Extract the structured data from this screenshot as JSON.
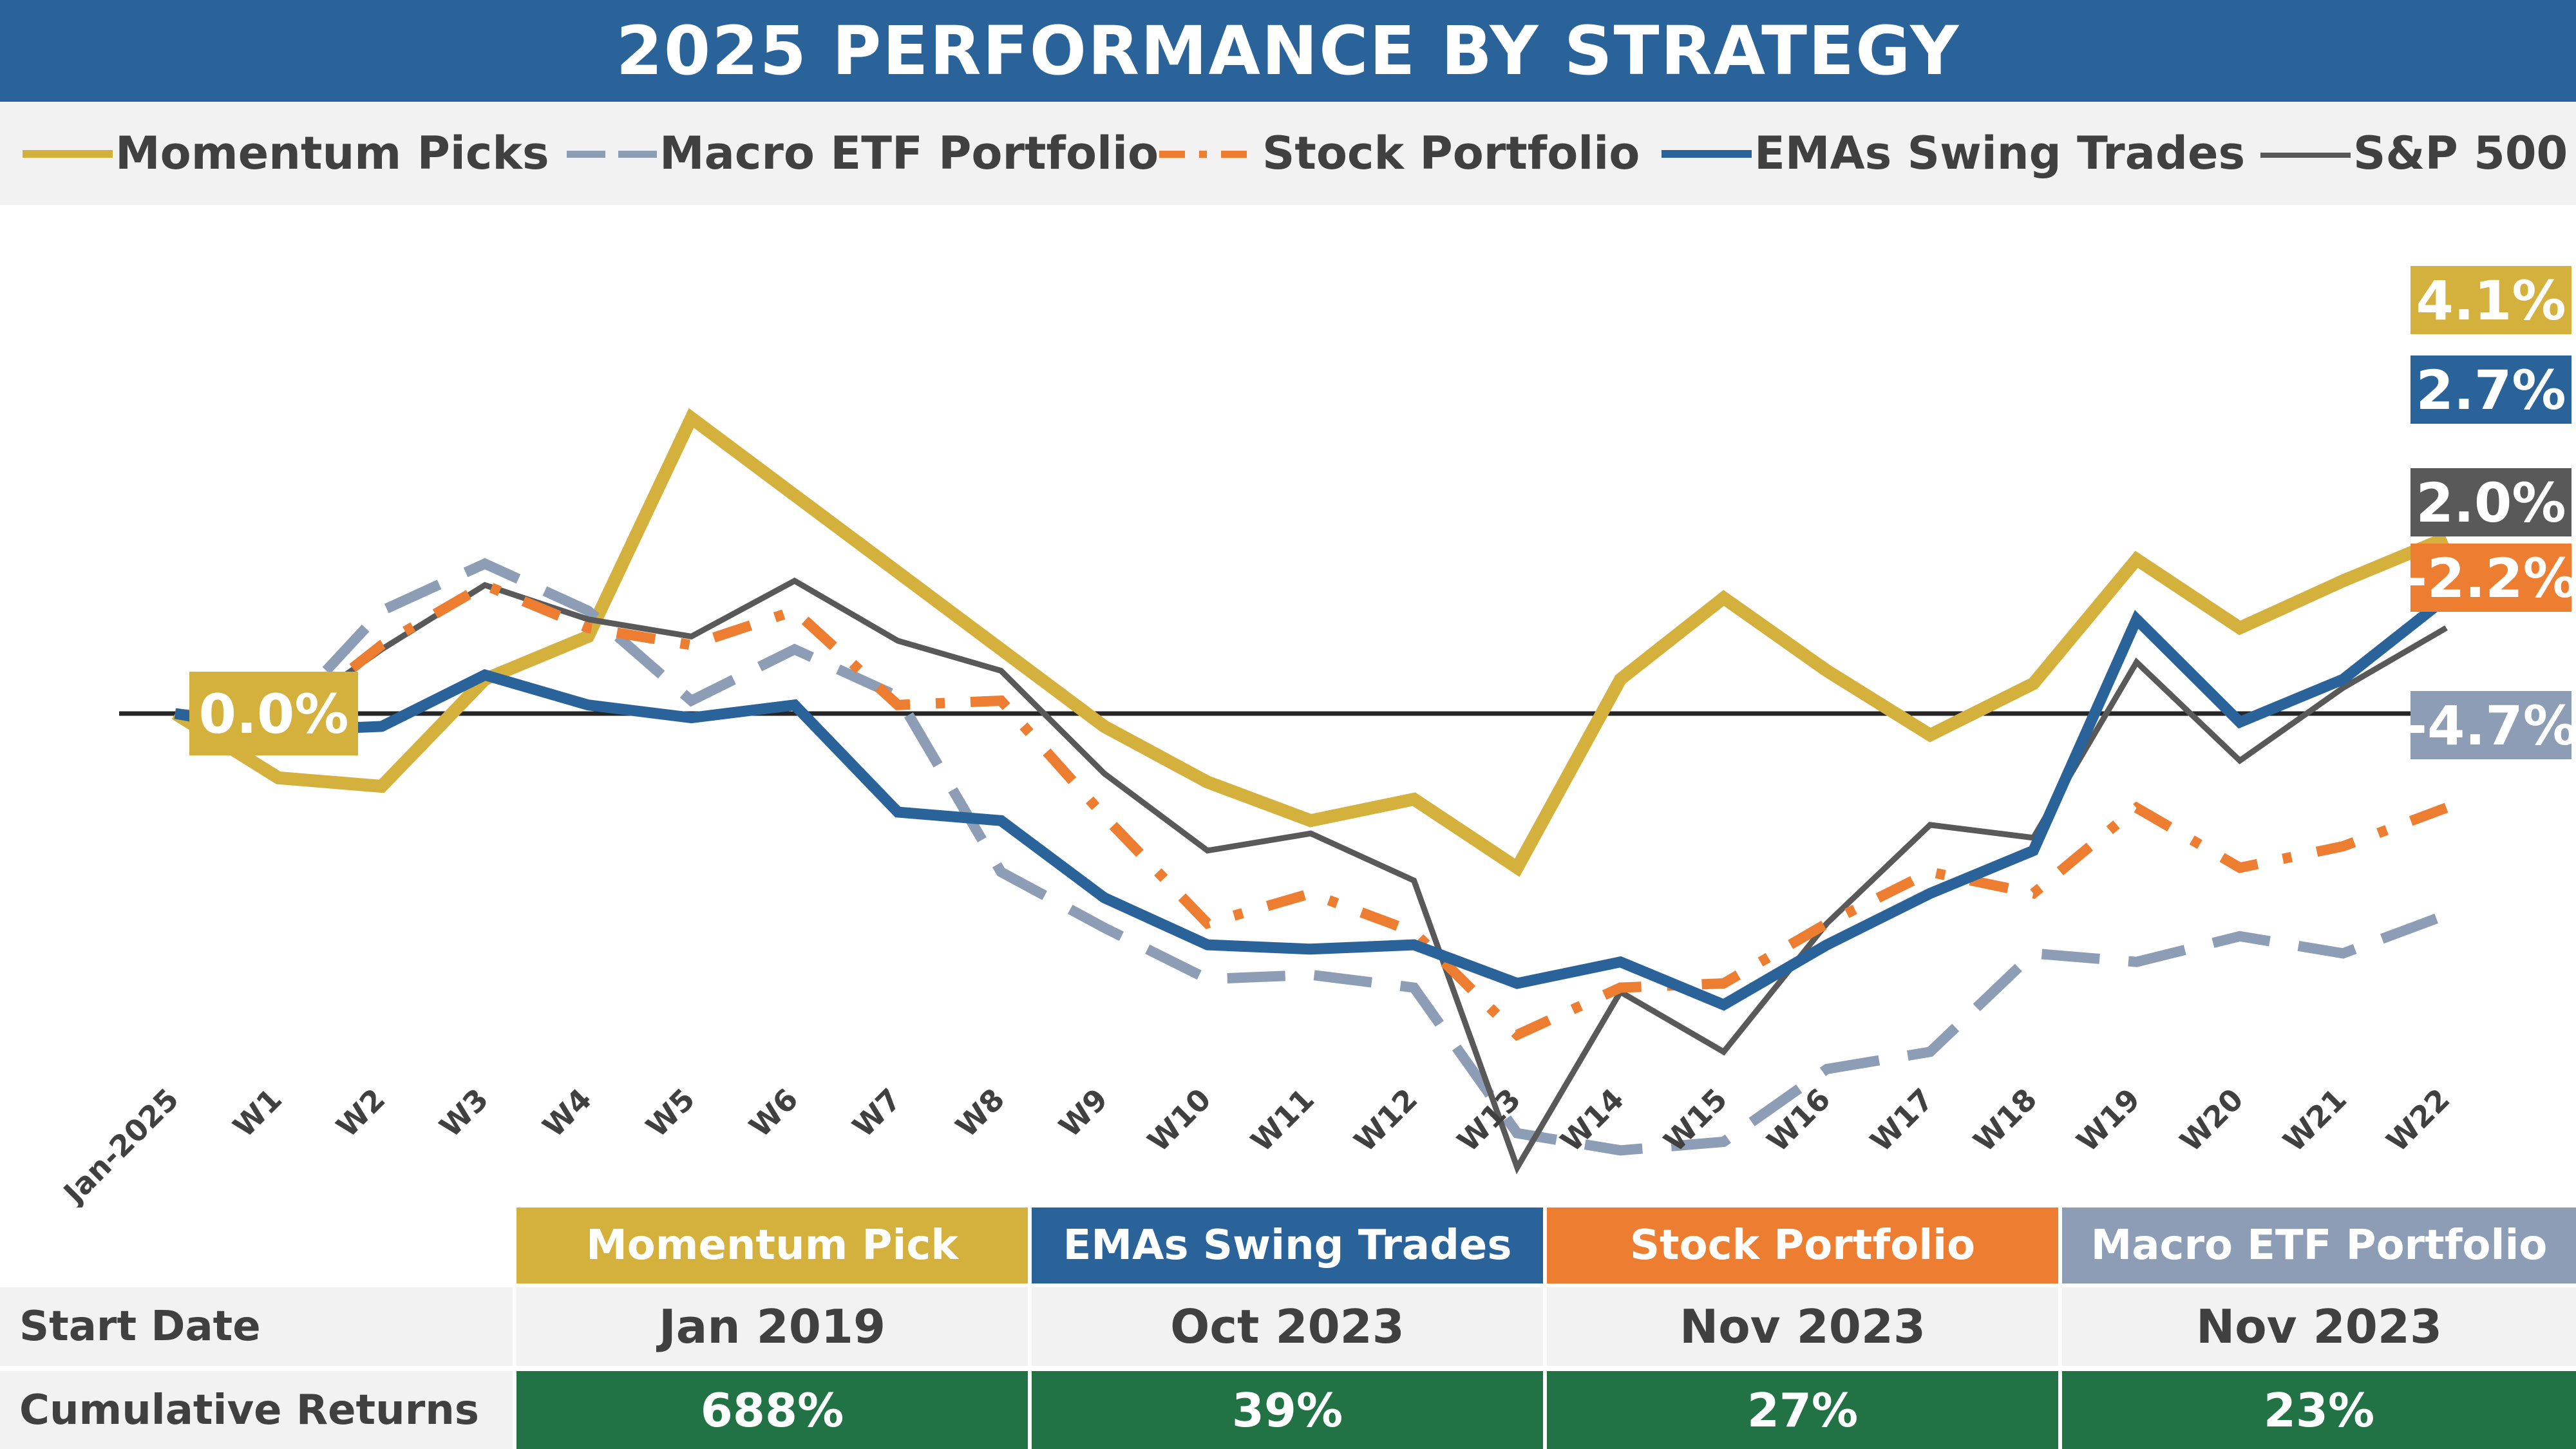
{
  "title": "2025 PERFORMANCE BY STRATEGY",
  "legend": [
    {
      "label": "Momentum Picks",
      "color": "#D4B03C",
      "style": "solid"
    },
    {
      "label": "Macro ETF Portfolio",
      "color": "#8C9DB5",
      "style": "dash"
    },
    {
      "label": "Stock Portfolio",
      "color": "#ED7D31",
      "style": "dashdot"
    },
    {
      "label": "EMAs Swing Trades",
      "color": "#2A6399",
      "style": "solid"
    },
    {
      "label": "S&P 500",
      "color": "#595959",
      "style": "thin"
    }
  ],
  "chart_data": {
    "type": "line",
    "categories": [
      "Jan-2025",
      "W1",
      "W2",
      "W3",
      "W4",
      "W5",
      "W6",
      "W7",
      "W8",
      "W9",
      "W10",
      "W11",
      "W12",
      "W13",
      "W14",
      "W15",
      "W16",
      "W17",
      "W18",
      "W19",
      "W20",
      "W21",
      "W22"
    ],
    "ylim": [
      -12.2,
      7.1
    ],
    "baseline": 0,
    "grid": false,
    "legend_position": "top",
    "series": [
      {
        "name": "Momentum Picks",
        "color": "#D4B03C",
        "values": [
          0.0,
          -1.5,
          -1.7,
          0.8,
          1.8,
          6.9,
          5.1,
          3.3,
          1.5,
          -0.3,
          -1.6,
          -2.5,
          -2.0,
          -3.6,
          0.8,
          2.7,
          1.0,
          -0.5,
          0.7,
          3.6,
          2.0,
          3.1,
          4.1
        ],
        "end_label": "4.1%",
        "start_label": "0.0%"
      },
      {
        "name": "EMAs Swing Trades",
        "color": "#2A6399",
        "values": [
          0.0,
          -0.4,
          -0.3,
          0.9,
          0.2,
          -0.1,
          0.2,
          -2.3,
          -2.5,
          -4.3,
          -5.4,
          -5.5,
          -5.4,
          -6.3,
          -5.8,
          -6.8,
          -5.4,
          -4.2,
          -3.2,
          2.2,
          -0.2,
          0.8,
          2.7
        ],
        "end_label": "2.7%"
      },
      {
        "name": "S&P 500",
        "color": "#595959",
        "values": [
          0.0,
          -0.2,
          1.5,
          3.0,
          2.2,
          1.8,
          3.1,
          1.7,
          1.0,
          -1.4,
          -3.2,
          -2.8,
          -3.9,
          -10.6,
          -6.5,
          -7.9,
          -4.9,
          -2.6,
          -2.9,
          1.2,
          -1.1,
          0.6,
          2.0
        ],
        "end_label": "2.0%"
      },
      {
        "name": "Stock Portfolio",
        "color": "#ED7D31",
        "values": [
          0.0,
          -0.3,
          1.6,
          3.0,
          2.0,
          1.6,
          2.4,
          0.2,
          0.3,
          -2.4,
          -4.9,
          -4.2,
          -5.1,
          -7.5,
          -6.4,
          -6.3,
          -4.9,
          -3.7,
          -4.2,
          -2.2,
          -3.6,
          -3.1,
          -2.2
        ],
        "end_label": "-2.2%"
      },
      {
        "name": "Macro ETF Portfolio",
        "color": "#8C9DB5",
        "values": [
          0.0,
          -0.2,
          2.4,
          3.5,
          2.4,
          0.3,
          1.5,
          0.4,
          -3.7,
          -5.0,
          -6.2,
          -6.1,
          -6.4,
          -9.8,
          -10.2,
          -10.0,
          -8.3,
          -7.9,
          -5.6,
          -5.8,
          -5.2,
          -5.6,
          -4.7
        ],
        "end_label": "-4.7%"
      }
    ]
  },
  "table": {
    "columns": [
      {
        "name": "Momentum Pick",
        "color": "#D4B03C"
      },
      {
        "name": "EMAs Swing Trades",
        "color": "#2A6399"
      },
      {
        "name": "Stock Portfolio",
        "color": "#ED7D31"
      },
      {
        "name": "Macro ETF Portfolio",
        "color": "#8C9DB5"
      }
    ],
    "rows": [
      {
        "label": "Start Date",
        "values": [
          "Jan 2019",
          "Oct 2023",
          "Nov 2023",
          "Nov 2023"
        ]
      },
      {
        "label": "Cumulative Returns",
        "values": [
          "688%",
          "39%",
          "27%",
          "23%"
        ]
      }
    ]
  }
}
